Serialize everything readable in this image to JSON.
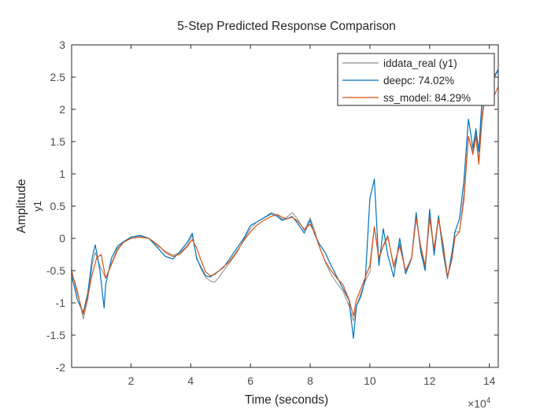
{
  "chart_data": {
    "type": "line",
    "title": "5-Step Predicted Response Comparison",
    "xlabel": "Time (seconds)",
    "ylabel": "Amplitude",
    "channel_label": "y1",
    "x_exponent_label": "×10",
    "x_exponent_power": "4",
    "xlim": [
      0.01,
      14.3
    ],
    "ylim": [
      -2,
      3
    ],
    "xticks": [
      2,
      4,
      6,
      8,
      10,
      12,
      14
    ],
    "yticks": [
      -2,
      -1.5,
      -1,
      -0.5,
      0,
      0.5,
      1,
      1.5,
      2,
      2.5,
      3
    ],
    "xtick_labels": [
      "2",
      "4",
      "6",
      "8",
      "10",
      "12",
      "14"
    ],
    "ytick_labels": [
      "-2",
      "-1.5",
      "-1",
      "-0.5",
      "0",
      "0.5",
      "1",
      "1.5",
      "2",
      "2.5",
      "3"
    ],
    "grid": false,
    "legend_position": "top-right",
    "series": [
      {
        "name": "iddata_real (y1)",
        "color": "#8c8c8c",
        "x": [
          0,
          0.2,
          0.4,
          0.55,
          0.7,
          0.8,
          0.95,
          1.15,
          1.35,
          1.55,
          1.75,
          2.0,
          2.3,
          2.6,
          2.9,
          3.15,
          3.4,
          3.65,
          3.9,
          4.05,
          4.2,
          4.35,
          4.5,
          4.65,
          4.8,
          4.95,
          5.1,
          5.3,
          5.55,
          5.8,
          6.0,
          6.2,
          6.45,
          6.7,
          6.9,
          7.05,
          7.2,
          7.4,
          7.6,
          7.8,
          8.0,
          8.15,
          8.3,
          8.5,
          8.7,
          8.9,
          9.1,
          9.3,
          9.45,
          9.55,
          9.7,
          9.85,
          10.0,
          10.15,
          10.3,
          10.45,
          10.6,
          10.8,
          11.0,
          11.2,
          11.4,
          11.55,
          11.7,
          11.85,
          12.0,
          12.15,
          12.3,
          12.45,
          12.6,
          12.75,
          12.85,
          13.0,
          13.15,
          13.3,
          13.45,
          13.55,
          13.65,
          13.75,
          13.85,
          14.0,
          14.15,
          14.3
        ],
        "y": [
          -0.5,
          -0.8,
          -1.25,
          -0.95,
          -0.4,
          -0.22,
          -0.42,
          -0.62,
          -0.38,
          -0.15,
          -0.06,
          0.02,
          0.05,
          0.0,
          -0.12,
          -0.2,
          -0.26,
          -0.22,
          -0.1,
          0.05,
          -0.3,
          -0.48,
          -0.6,
          -0.66,
          -0.68,
          -0.6,
          -0.5,
          -0.38,
          -0.22,
          0.0,
          0.15,
          0.25,
          0.32,
          0.4,
          0.36,
          0.3,
          0.32,
          0.4,
          0.28,
          0.12,
          0.32,
          0.12,
          -0.12,
          -0.36,
          -0.56,
          -0.7,
          -0.82,
          -1.05,
          -1.28,
          -1.05,
          -0.85,
          -0.66,
          -0.52,
          0.18,
          -0.35,
          -0.1,
          0.05,
          -0.46,
          -0.08,
          -0.54,
          -0.32,
          0.34,
          -0.15,
          -0.46,
          0.3,
          -0.18,
          0.36,
          -0.12,
          -0.58,
          -0.3,
          0.1,
          0.1,
          0.7,
          1.58,
          1.35,
          1.65,
          1.2,
          1.9,
          2.25,
          2.65,
          2.48,
          2.6
        ]
      },
      {
        "name": "deepc: 74.02%",
        "color": "#0072bd",
        "x": [
          0,
          0.2,
          0.4,
          0.55,
          0.7,
          0.8,
          0.95,
          1.1,
          1.15,
          1.35,
          1.55,
          1.75,
          2.0,
          2.3,
          2.6,
          2.9,
          3.15,
          3.4,
          3.65,
          3.9,
          4.05,
          4.2,
          4.35,
          4.5,
          4.65,
          4.8,
          4.95,
          5.1,
          5.3,
          5.55,
          5.8,
          6.0,
          6.2,
          6.45,
          6.7,
          6.9,
          7.05,
          7.2,
          7.4,
          7.6,
          7.8,
          8.0,
          8.15,
          8.3,
          8.5,
          8.7,
          8.9,
          9.1,
          9.3,
          9.45,
          9.55,
          9.7,
          9.85,
          10.0,
          10.15,
          10.3,
          10.45,
          10.6,
          10.8,
          11.0,
          11.2,
          11.4,
          11.55,
          11.7,
          11.85,
          12.0,
          12.15,
          12.3,
          12.45,
          12.6,
          12.75,
          12.85,
          13.0,
          13.15,
          13.3,
          13.45,
          13.55,
          13.65,
          13.75,
          13.85,
          14.0,
          14.15,
          14.3
        ],
        "y": [
          -0.55,
          -0.95,
          -1.15,
          -0.85,
          -0.3,
          -0.1,
          -0.48,
          -1.08,
          -0.72,
          -0.3,
          -0.12,
          -0.05,
          0.02,
          0.04,
          0.0,
          -0.15,
          -0.28,
          -0.32,
          -0.2,
          -0.05,
          0.08,
          -0.32,
          -0.45,
          -0.58,
          -0.6,
          -0.55,
          -0.5,
          -0.45,
          -0.32,
          -0.15,
          0.02,
          0.2,
          0.25,
          0.32,
          0.38,
          0.34,
          0.28,
          0.3,
          0.34,
          0.22,
          0.08,
          0.28,
          0.06,
          -0.08,
          -0.22,
          -0.42,
          -0.6,
          -0.78,
          -0.96,
          -1.55,
          -1.05,
          -0.9,
          -0.62,
          0.62,
          0.92,
          -0.42,
          0.15,
          -0.26,
          -0.6,
          0.0,
          -0.55,
          -0.3,
          0.4,
          -0.2,
          -0.5,
          0.45,
          -0.26,
          0.34,
          -0.2,
          -0.62,
          -0.22,
          0.1,
          0.3,
          0.9,
          1.85,
          1.4,
          1.7,
          1.35,
          2.1,
          2.45,
          2.75,
          2.5,
          2.62
        ]
      },
      {
        "name": "ss_model: 84.29%",
        "color": "#d95319",
        "x": [
          0,
          0.2,
          0.4,
          0.55,
          0.7,
          0.85,
          1.0,
          1.15,
          1.35,
          1.55,
          1.75,
          2.0,
          2.3,
          2.6,
          2.9,
          3.15,
          3.4,
          3.65,
          3.9,
          4.05,
          4.2,
          4.35,
          4.5,
          4.65,
          4.8,
          4.95,
          5.1,
          5.3,
          5.55,
          5.8,
          6.0,
          6.2,
          6.45,
          6.7,
          6.9,
          7.05,
          7.2,
          7.4,
          7.6,
          7.8,
          8.0,
          8.15,
          8.3,
          8.5,
          8.7,
          8.9,
          9.1,
          9.3,
          9.45,
          9.55,
          9.7,
          9.85,
          10.0,
          10.15,
          10.3,
          10.45,
          10.6,
          10.8,
          11.0,
          11.2,
          11.4,
          11.55,
          11.7,
          11.85,
          12.0,
          12.15,
          12.3,
          12.45,
          12.6,
          12.75,
          12.85,
          13.0,
          13.15,
          13.3,
          13.45,
          13.55,
          13.65,
          13.75,
          13.85,
          14.0,
          14.15,
          14.3
        ],
        "y": [
          -0.48,
          -0.85,
          -1.18,
          -0.9,
          -0.55,
          -0.3,
          -0.25,
          -0.62,
          -0.4,
          -0.18,
          -0.06,
          0.0,
          0.02,
          0.0,
          -0.1,
          -0.22,
          -0.28,
          -0.24,
          -0.12,
          -0.02,
          -0.15,
          -0.35,
          -0.52,
          -0.58,
          -0.56,
          -0.5,
          -0.44,
          -0.36,
          -0.2,
          -0.02,
          0.1,
          0.2,
          0.28,
          0.34,
          0.37,
          0.33,
          0.3,
          0.33,
          0.26,
          0.14,
          0.22,
          0.08,
          -0.12,
          -0.35,
          -0.5,
          -0.62,
          -0.72,
          -0.95,
          -1.2,
          -0.95,
          -0.78,
          -0.6,
          -0.42,
          0.18,
          -0.3,
          -0.12,
          0.02,
          -0.42,
          -0.12,
          -0.5,
          -0.3,
          0.32,
          -0.12,
          -0.42,
          0.34,
          -0.16,
          0.3,
          -0.08,
          -0.6,
          -0.32,
          0.02,
          0.1,
          0.6,
          1.58,
          1.3,
          1.58,
          1.15,
          1.8,
          2.2,
          2.6,
          2.2,
          2.35
        ]
      }
    ]
  }
}
